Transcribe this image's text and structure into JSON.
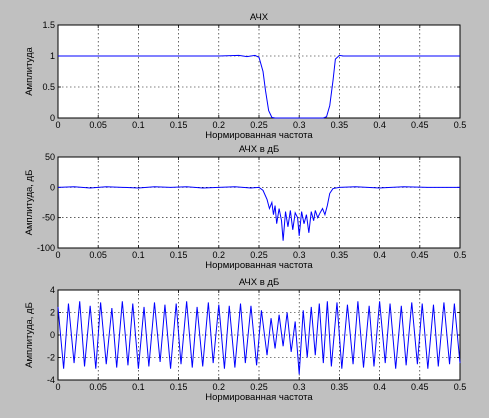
{
  "chart_data": [
    {
      "type": "line",
      "title": "АЧХ",
      "xlabel": "Нормированная частота",
      "ylabel": "Амплитуда",
      "xlim": [
        0,
        0.5
      ],
      "ylim": [
        0,
        1.5
      ],
      "xticks": [
        "0",
        "0.05",
        "0.1",
        "0.15",
        "0.2",
        "0.25",
        "0.3",
        "0.35",
        "0.4",
        "0.45",
        "0.5"
      ],
      "yticks": [
        "0",
        "0.5",
        "1",
        "1.5"
      ],
      "grid": true,
      "color": "#0000ff",
      "series": [
        {
          "x": [
            0,
            0.05,
            0.1,
            0.15,
            0.2,
            0.225,
            0.235,
            0.245,
            0.25,
            0.255,
            0.258,
            0.262,
            0.266,
            0.27,
            0.3,
            0.33,
            0.334,
            0.338,
            0.342,
            0.345,
            0.35,
            0.355,
            0.365,
            0.4,
            0.45,
            0.5
          ],
          "y": [
            1,
            1,
            1,
            1,
            1,
            1.01,
            0.99,
            1.01,
            0.98,
            0.75,
            0.45,
            0.12,
            0.01,
            0,
            0,
            0,
            0.02,
            0.2,
            0.6,
            0.95,
            1.01,
            1,
            1,
            1,
            1,
            1
          ]
        }
      ]
    },
    {
      "type": "line",
      "title": "АЧХ в дБ",
      "xlabel": "Нормированная частота",
      "ylabel": "Амплитуда, дБ",
      "xlim": [
        0,
        0.5
      ],
      "ylim": [
        -100,
        50
      ],
      "xticks": [
        "0",
        "0.05",
        "0.1",
        "0.15",
        "0.2",
        "0.25",
        "0.3",
        "0.35",
        "0.4",
        "0.45",
        "0.5"
      ],
      "yticks": [
        "-100",
        "-50",
        "0",
        "50"
      ],
      "grid": true,
      "color": "#0000ff",
      "series": [
        {
          "x": [
            0,
            0.02,
            0.04,
            0.06,
            0.08,
            0.1,
            0.12,
            0.14,
            0.16,
            0.18,
            0.2,
            0.22,
            0.24,
            0.25,
            0.255,
            0.26,
            0.263,
            0.266,
            0.268,
            0.27,
            0.272,
            0.275,
            0.278,
            0.28,
            0.283,
            0.286,
            0.289,
            0.292,
            0.295,
            0.298,
            0.3,
            0.303,
            0.306,
            0.309,
            0.312,
            0.315,
            0.318,
            0.32,
            0.323,
            0.326,
            0.329,
            0.332,
            0.335,
            0.338,
            0.342,
            0.35,
            0.37,
            0.4,
            0.43,
            0.46,
            0.5
          ],
          "y": [
            0,
            1,
            -1,
            1,
            0,
            -1,
            1,
            0,
            1,
            -1,
            0,
            1,
            -1,
            0,
            -5,
            -20,
            -35,
            -25,
            -45,
            -30,
            -60,
            -35,
            -55,
            -88,
            -40,
            -65,
            -38,
            -70,
            -42,
            -50,
            -80,
            -40,
            -60,
            -45,
            -75,
            -40,
            -55,
            -38,
            -50,
            -42,
            -35,
            -45,
            -30,
            -10,
            -2,
            0,
            1,
            -1,
            1,
            0,
            0
          ]
        }
      ]
    },
    {
      "type": "line",
      "title": "АЧХ в дБ",
      "xlabel": "Нормированная частота",
      "ylabel": "Амплитуда, дБ",
      "xlim": [
        0,
        0.5
      ],
      "ylim": [
        -4,
        4
      ],
      "xticks": [
        "0",
        "0.05",
        "0.1",
        "0.15",
        "0.2",
        "0.25",
        "0.3",
        "0.35",
        "0.4",
        "0.45",
        "0.5"
      ],
      "yticks": [
        "-4",
        "-2",
        "0",
        "2",
        "4"
      ],
      "grid": true,
      "color": "#0000ff",
      "series": [
        {
          "x": [
            0,
            0.007,
            0.013,
            0.02,
            0.027,
            0.033,
            0.04,
            0.047,
            0.053,
            0.06,
            0.067,
            0.073,
            0.08,
            0.087,
            0.093,
            0.1,
            0.107,
            0.113,
            0.12,
            0.127,
            0.133,
            0.14,
            0.147,
            0.153,
            0.16,
            0.167,
            0.173,
            0.18,
            0.187,
            0.193,
            0.2,
            0.207,
            0.213,
            0.22,
            0.227,
            0.233,
            0.24,
            0.247,
            0.253,
            0.26,
            0.265,
            0.27,
            0.275,
            0.28,
            0.285,
            0.29,
            0.295,
            0.3,
            0.305,
            0.31,
            0.315,
            0.32,
            0.325,
            0.33,
            0.335,
            0.34,
            0.347,
            0.353,
            0.36,
            0.367,
            0.373,
            0.38,
            0.387,
            0.393,
            0.4,
            0.407,
            0.413,
            0.42,
            0.427,
            0.433,
            0.44,
            0.447,
            0.453,
            0.46,
            0.467,
            0.473,
            0.48,
            0.487,
            0.493,
            0.5
          ],
          "y": [
            2.5,
            -3,
            2.8,
            -2.5,
            3,
            -2.8,
            2.6,
            -3,
            2.9,
            -2.6,
            2.4,
            -2.9,
            3,
            -2.7,
            2.8,
            -3,
            2.5,
            -2.8,
            2.9,
            -2.4,
            2.7,
            -3,
            2.8,
            -2.6,
            3,
            -2.9,
            2.5,
            -2.8,
            2.9,
            -2.5,
            2.7,
            -3,
            2.6,
            -2.9,
            2.8,
            -2.5,
            2.6,
            -2.7,
            2.2,
            -1.8,
            1.5,
            -1.2,
            1.8,
            -1,
            2.0,
            -1.5,
            1.2,
            -3.5,
            2.2,
            -2.0,
            2.5,
            -1.8,
            2.8,
            -2.5,
            3,
            -2.8,
            2.9,
            -3,
            2.7,
            -2.6,
            3,
            -2.9,
            2.6,
            -2.8,
            3,
            -2.5,
            2.8,
            -3,
            2.6,
            -2.7,
            2.9,
            -2.6,
            2.8,
            -3,
            2.7,
            -2.8,
            2.9,
            -2.6,
            2.8,
            -2.5
          ]
        }
      ]
    }
  ]
}
